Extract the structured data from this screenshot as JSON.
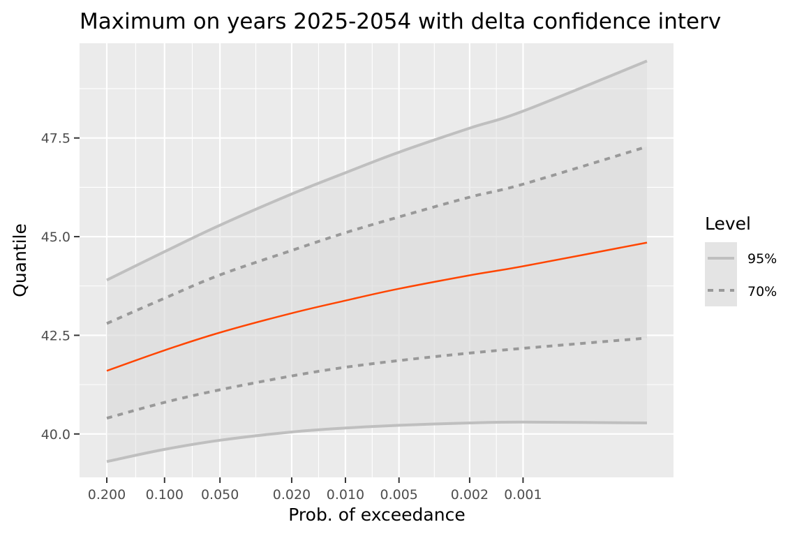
{
  "chart_data": {
    "type": "line",
    "title": "Maximum on years 2025-2054 with delta confidence interv",
    "xlabel": "Prob. of exceedance",
    "ylabel": "Quantile",
    "x_scale": "return-level (reciprocal probability axis)",
    "x_ticks": [
      "0.200",
      "0.100",
      "0.050",
      "0.020",
      "0.010",
      "0.005",
      "0.002",
      "0.001"
    ],
    "y_ticks": [
      "40.0",
      "42.5",
      "45.0",
      "47.5"
    ],
    "ylim": [
      38.9,
      49.9
    ],
    "grid": true,
    "legend": {
      "title": "Level",
      "position": "right",
      "entries": [
        {
          "label": "95%",
          "linetype": "solid"
        },
        {
          "label": "70%",
          "linetype": "dashed"
        }
      ]
    },
    "x": [
      0.2,
      0.1,
      0.05,
      0.02,
      0.01,
      0.005,
      0.002,
      0.001,
      0.0002
    ],
    "series": [
      {
        "role": "estimate",
        "values": [
          41.6,
          42.12,
          42.57,
          43.06,
          43.38,
          43.68,
          44.02,
          44.25,
          44.85
        ]
      },
      {
        "role": "upper",
        "level": "95%",
        "values": [
          43.9,
          44.62,
          45.29,
          46.08,
          46.62,
          47.14,
          47.75,
          48.18,
          49.45
        ]
      },
      {
        "role": "lower",
        "level": "95%",
        "values": [
          39.3,
          39.61,
          39.84,
          40.05,
          40.15,
          40.22,
          40.28,
          40.3,
          40.28
        ]
      },
      {
        "role": "upper",
        "level": "70%",
        "values": [
          42.8,
          43.44,
          44.03,
          44.65,
          45.1,
          45.5,
          46.0,
          46.33,
          47.28
        ]
      },
      {
        "role": "lower",
        "level": "70%",
        "values": [
          40.4,
          40.8,
          41.12,
          41.47,
          41.69,
          41.86,
          42.05,
          42.17,
          42.43
        ]
      }
    ],
    "colors": {
      "estimate": "#ff4500",
      "band95_line": "#bfbfbf",
      "band70_line": "#999999",
      "band_fill": "#d9d9d9",
      "panel": "#ebebeb",
      "grid": "#ffffff",
      "legend_key": "#e4e4e4"
    }
  }
}
